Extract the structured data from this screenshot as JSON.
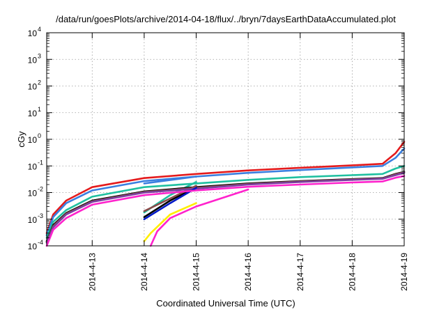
{
  "chart_data": {
    "type": "line",
    "title": "/data/run/goesPlots/archive/2014-04-18/flux/../bryn/7daysEarthDataAccumulated.plot",
    "xlabel": "Coordinated Universal Time (UTC)",
    "ylabel": "cGy",
    "x_scale": "time",
    "y_scale": "log",
    "xlim": [
      "2014-04-12T03:00",
      "2014-04-19T00:00"
    ],
    "ylim": [
      0.0001,
      10000
    ],
    "x_ticks": [
      "2014-4-13",
      "2014-4-14",
      "2014-4-15",
      "2014-4-16",
      "2014-4-17",
      "2014-4-18",
      "2014-4-19"
    ],
    "y_ticks": [
      {
        "base": "10",
        "exp": "4"
      },
      {
        "base": "10",
        "exp": "3"
      },
      {
        "base": "10",
        "exp": "2"
      },
      {
        "base": "10",
        "exp": "1"
      },
      {
        "base": "10",
        "exp": "0"
      },
      {
        "base": "10",
        "exp": "-1"
      },
      {
        "base": "10",
        "exp": "-2"
      },
      {
        "base": "10",
        "exp": "-3"
      },
      {
        "base": "10",
        "exp": "-4"
      }
    ],
    "grid": true,
    "legend": "none",
    "series": [
      {
        "color": "#e41a1c",
        "segments": [
          [
            [
              "2014-04-12T03:00",
              0.0003
            ],
            [
              "2014-04-12T06:00",
              0.0015
            ],
            [
              "2014-04-12T12:00",
              0.005
            ],
            [
              "2014-04-13T00:00",
              0.016
            ],
            [
              "2014-04-14T00:00",
              0.035
            ],
            [
              "2014-04-15T00:00",
              0.05
            ],
            [
              "2014-04-16T00:00",
              0.068
            ],
            [
              "2014-04-17T00:00",
              0.085
            ],
            [
              "2014-04-18T00:00",
              0.105
            ],
            [
              "2014-04-18T14:00",
              0.12
            ],
            [
              "2014-04-18T20:00",
              0.3
            ],
            [
              "2014-04-19T00:00",
              0.8
            ]
          ]
        ]
      },
      {
        "color": "#3a7fe0",
        "segments": [
          [
            [
              "2014-04-12T03:00",
              0.00025
            ],
            [
              "2014-04-12T06:00",
              0.0012
            ],
            [
              "2014-04-12T12:00",
              0.004
            ],
            [
              "2014-04-13T00:00",
              0.012
            ],
            [
              "2014-04-14T00:00",
              0.027
            ],
            [
              "2014-04-15T00:00",
              0.04
            ],
            [
              "2014-04-16T00:00",
              0.055
            ],
            [
              "2014-04-17T00:00",
              0.07
            ],
            [
              "2014-04-18T00:00",
              0.088
            ],
            [
              "2014-04-18T14:00",
              0.1
            ],
            [
              "2014-04-18T20:00",
              0.2
            ],
            [
              "2014-04-19T00:00",
              0.45
            ]
          ],
          [
            [
              "2014-04-14T00:00",
              0.022
            ],
            [
              "2014-04-15T00:00",
              0.04
            ]
          ]
        ]
      },
      {
        "color": "#1fc0a0",
        "segments": [
          [
            [
              "2014-04-12T03:00",
              0.0002
            ],
            [
              "2014-04-12T06:00",
              0.0008
            ],
            [
              "2014-04-12T12:00",
              0.0022
            ],
            [
              "2014-04-13T00:00",
              0.007
            ],
            [
              "2014-04-14T00:00",
              0.016
            ],
            [
              "2014-04-15T00:00",
              0.022
            ],
            [
              "2014-04-16T00:00",
              0.03
            ],
            [
              "2014-04-17T00:00",
              0.038
            ],
            [
              "2014-04-18T00:00",
              0.045
            ],
            [
              "2014-04-18T14:00",
              0.05
            ],
            [
              "2014-04-18T20:00",
              0.08
            ],
            [
              "2014-04-19T00:00",
              0.1
            ]
          ],
          [
            [
              "2014-04-14T00:00",
              0.0018
            ],
            [
              "2014-04-14T12:00",
              0.008
            ],
            [
              "2014-04-15T00:00",
              0.025
            ]
          ]
        ]
      },
      {
        "color": "#000000",
        "segments": [
          [
            [
              "2014-04-12T03:00",
              0.00015
            ],
            [
              "2014-04-12T06:00",
              0.0006
            ],
            [
              "2014-04-12T12:00",
              0.0017
            ],
            [
              "2014-04-13T00:00",
              0.005
            ],
            [
              "2014-04-14T00:00",
              0.011
            ],
            [
              "2014-04-15T00:00",
              0.016
            ],
            [
              "2014-04-16T00:00",
              0.022
            ],
            [
              "2014-04-17T00:00",
              0.027
            ],
            [
              "2014-04-18T00:00",
              0.032
            ],
            [
              "2014-04-18T14:00",
              0.035
            ],
            [
              "2014-04-18T20:00",
              0.05
            ],
            [
              "2014-04-19T00:00",
              0.06
            ]
          ],
          [
            [
              "2014-04-14T00:00",
              0.0012
            ],
            [
              "2014-04-14T12:00",
              0.005
            ],
            [
              "2014-04-15T00:00",
              0.016
            ]
          ]
        ]
      },
      {
        "color": "#8b4a4a",
        "segments": [
          [
            [
              "2014-04-12T03:00",
              0.00014
            ],
            [
              "2014-04-12T06:00",
              0.00055
            ],
            [
              "2014-04-12T12:00",
              0.0016
            ],
            [
              "2014-04-13T00:00",
              0.0047
            ],
            [
              "2014-04-14T00:00",
              0.0105
            ],
            [
              "2014-04-15T00:00",
              0.015
            ],
            [
              "2014-04-16T00:00",
              0.021
            ],
            [
              "2014-04-17T00:00",
              0.026
            ],
            [
              "2014-04-18T00:00",
              0.031
            ],
            [
              "2014-04-18T14:00",
              0.034
            ],
            [
              "2014-04-18T20:00",
              0.048
            ],
            [
              "2014-04-19T00:00",
              0.058
            ]
          ],
          [
            [
              "2014-04-14T00:00",
              0.002
            ],
            [
              "2014-04-14T12:00",
              0.006
            ],
            [
              "2014-04-15T00:00",
              0.018
            ]
          ]
        ]
      },
      {
        "color": "#7a3fa0",
        "segments": [
          [
            [
              "2014-04-12T03:00",
              0.00013
            ],
            [
              "2014-04-12T06:00",
              0.0005
            ],
            [
              "2014-04-12T12:00",
              0.0015
            ],
            [
              "2014-04-13T00:00",
              0.0045
            ],
            [
              "2014-04-14T00:00",
              0.01
            ],
            [
              "2014-04-15T00:00",
              0.014
            ],
            [
              "2014-04-16T00:00",
              0.02
            ],
            [
              "2014-04-17T00:00",
              0.025
            ],
            [
              "2014-04-18T00:00",
              0.03
            ],
            [
              "2014-04-18T14:00",
              0.033
            ],
            [
              "2014-04-18T20:00",
              0.045
            ],
            [
              "2014-04-19T00:00",
              0.055
            ]
          ]
        ]
      },
      {
        "color": "#0018c8",
        "segments": [
          [
            [
              "2014-04-14T00:00",
              0.001
            ],
            [
              "2014-04-14T12:00",
              0.004
            ],
            [
              "2014-04-15T00:00",
              0.015
            ]
          ]
        ]
      },
      {
        "color": "#ffee00",
        "segments": [
          [
            [
              "2014-04-14T00:00",
              0.00015
            ],
            [
              "2014-04-14T03:00",
              0.0003
            ],
            [
              "2014-04-14T12:00",
              0.0015
            ],
            [
              "2014-04-15T00:00",
              0.004
            ]
          ]
        ]
      },
      {
        "color": "#ff22cc",
        "segments": [
          [
            [
              "2014-04-12T03:00",
              0.0001
            ],
            [
              "2014-04-12T06:00",
              0.0004
            ],
            [
              "2014-04-12T12:00",
              0.0011
            ],
            [
              "2014-04-13T00:00",
              0.0035
            ],
            [
              "2014-04-14T00:00",
              0.008
            ],
            [
              "2014-04-15T00:00",
              0.012
            ],
            [
              "2014-04-16T00:00",
              0.0165
            ],
            [
              "2014-04-17T00:00",
              0.02
            ],
            [
              "2014-04-18T00:00",
              0.024
            ],
            [
              "2014-04-18T14:00",
              0.026
            ],
            [
              "2014-04-18T20:00",
              0.036
            ],
            [
              "2014-04-19T00:00",
              0.042
            ]
          ],
          [
            [
              "2014-04-14T03:00",
              0.0001
            ],
            [
              "2014-04-14T06:00",
              0.00035
            ],
            [
              "2014-04-14T12:00",
              0.0011
            ],
            [
              "2014-04-15T00:00",
              0.003
            ],
            [
              "2014-04-16T00:00",
              0.013
            ]
          ]
        ]
      }
    ]
  }
}
